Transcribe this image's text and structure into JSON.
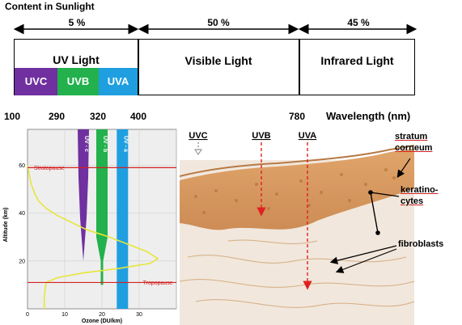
{
  "title": "Content in Sunlight",
  "percentages": [
    "5 %",
    "50 %",
    "45 %"
  ],
  "bands": {
    "uv_light": "UV Light",
    "visible_light": "Visible Light",
    "infrared_light": "Infrared Light",
    "uvc": "UVC",
    "uvb": "UVB",
    "uva": "UVA"
  },
  "wavelength_ticks": [
    "100",
    "290",
    "320",
    "400",
    "780"
  ],
  "wavelength_label": "Wavelength (nm)",
  "colors": {
    "uvc": "#7030a0",
    "uvb": "#22b14c",
    "uva": "#1f9fe0",
    "curve": "#e6e63a",
    "reference_line": "#d42020"
  },
  "chart": {
    "ylabel": "Altitude (km)",
    "xlabel": "Ozone (DU/km)",
    "yticks": [
      "20",
      "40",
      "60"
    ],
    "xticks": [
      "0",
      "10",
      "20",
      "30"
    ],
    "stratopause": "Stratopause",
    "tropopause": "Tropopause",
    "strip_labels": [
      "UV - c",
      "UV - b",
      "UV - a"
    ]
  },
  "chart_data": {
    "type": "line",
    "xlabel": "Ozone (DU/km)",
    "ylabel": "Altitude (km)",
    "xlim": [
      0,
      40
    ],
    "ylim": [
      0,
      75
    ],
    "series": [
      {
        "x": [
          0,
          0.5,
          1,
          2,
          3,
          5,
          8,
          12,
          16,
          22,
          27,
          32,
          35,
          33,
          25,
          15,
          8,
          5,
          4.5,
          4.5
        ],
        "y": [
          60,
          56,
          52,
          48,
          45,
          42,
          39,
          36,
          33,
          30,
          27,
          24,
          21,
          19,
          17,
          15,
          13,
          11,
          5,
          0
        ]
      }
    ],
    "stratopause_km": 59,
    "tropopause_km": 11,
    "penetration": {
      "UV - c": 20,
      "UV - b": 10,
      "UV - a": 0
    }
  },
  "skin": {
    "arrows": [
      "UVC",
      "UVB",
      "UVA"
    ],
    "labels": {
      "stratum": "stratum\ncorneum",
      "keratinocytes": "keratino-\ncytes",
      "fibroblasts": "fibroblasts"
    }
  }
}
